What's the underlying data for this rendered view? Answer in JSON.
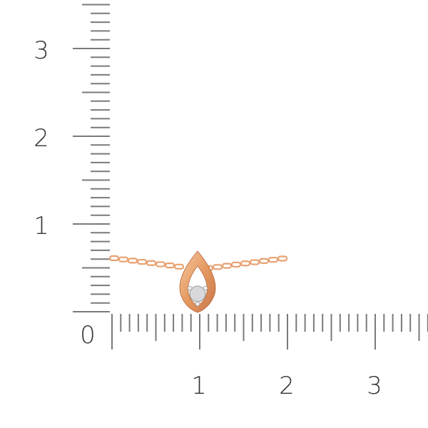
{
  "ruler": {
    "unit_scale": "cm",
    "vertical_labels": [
      "0",
      "1",
      "2",
      "3"
    ],
    "horizontal_labels": [
      "1",
      "2",
      "3"
    ],
    "tick_color": "#7a7a7a"
  },
  "product": {
    "type": "pendant-necklace",
    "metal_color": "#e8a070",
    "stone": "diamond"
  }
}
